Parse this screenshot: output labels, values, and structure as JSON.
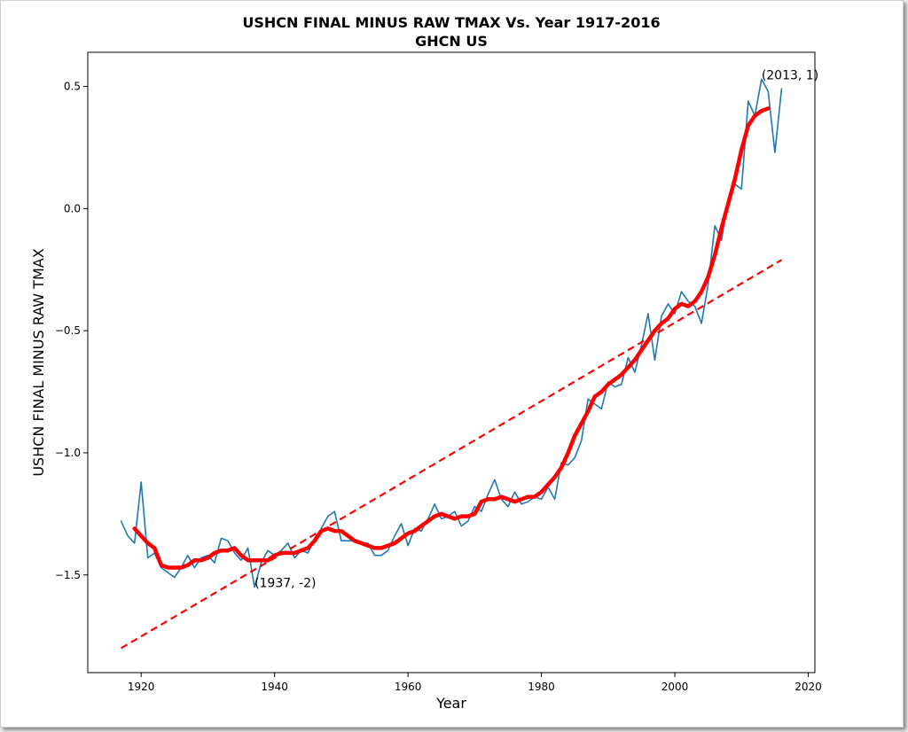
{
  "chart_data": {
    "type": "line",
    "title": "USHCN FINAL MINUS RAW TMAX Vs. Year 1917-2016",
    "subtitle": "GHCN US",
    "xlabel": "Year",
    "ylabel": "USHCN FINAL MINUS RAW TMAX",
    "xlim": [
      1912,
      2021
    ],
    "ylim": [
      -1.9,
      0.64
    ],
    "xticks": [
      1920,
      1940,
      1960,
      1980,
      2000,
      2020
    ],
    "xtick_labels": [
      "1920",
      "1940",
      "1960",
      "1980",
      "2000",
      "2020"
    ],
    "yticks": [
      -1.5,
      -1.0,
      -0.5,
      0.0,
      0.5
    ],
    "ytick_labels": [
      "−1.5",
      "−1.0",
      "−0.5",
      "0.0",
      "0.5"
    ],
    "grid": false,
    "series": [
      {
        "style": "thin-line",
        "color": "#1f77b4",
        "x": [
          1917,
          1918,
          1919,
          1920,
          1921,
          1922,
          1923,
          1924,
          1925,
          1926,
          1927,
          1928,
          1929,
          1930,
          1931,
          1932,
          1933,
          1934,
          1935,
          1936,
          1937,
          1938,
          1939,
          1940,
          1941,
          1942,
          1943,
          1944,
          1945,
          1946,
          1947,
          1948,
          1949,
          1950,
          1951,
          1952,
          1953,
          1954,
          1955,
          1956,
          1957,
          1958,
          1959,
          1960,
          1961,
          1962,
          1963,
          1964,
          1965,
          1966,
          1967,
          1968,
          1969,
          1970,
          1971,
          1972,
          1973,
          1974,
          1975,
          1976,
          1977,
          1978,
          1979,
          1980,
          1981,
          1982,
          1983,
          1984,
          1985,
          1986,
          1987,
          1988,
          1989,
          1990,
          1991,
          1992,
          1993,
          1994,
          1995,
          1996,
          1997,
          1998,
          1999,
          2000,
          2001,
          2002,
          2003,
          2004,
          2005,
          2006,
          2007,
          2008,
          2009,
          2010,
          2011,
          2012,
          2013,
          2014,
          2015,
          2016
        ],
        "values": [
          -1.28,
          -1.34,
          -1.37,
          -1.12,
          -1.43,
          -1.41,
          -1.47,
          -1.49,
          -1.51,
          -1.47,
          -1.42,
          -1.47,
          -1.43,
          -1.42,
          -1.45,
          -1.35,
          -1.36,
          -1.41,
          -1.44,
          -1.39,
          -1.55,
          -1.45,
          -1.4,
          -1.42,
          -1.4,
          -1.37,
          -1.43,
          -1.4,
          -1.41,
          -1.35,
          -1.31,
          -1.26,
          -1.24,
          -1.36,
          -1.36,
          -1.36,
          -1.37,
          -1.37,
          -1.42,
          -1.42,
          -1.4,
          -1.34,
          -1.29,
          -1.38,
          -1.31,
          -1.32,
          -1.27,
          -1.21,
          -1.27,
          -1.26,
          -1.24,
          -1.3,
          -1.28,
          -1.22,
          -1.24,
          -1.17,
          -1.11,
          -1.19,
          -1.22,
          -1.16,
          -1.21,
          -1.2,
          -1.18,
          -1.19,
          -1.14,
          -1.19,
          -1.04,
          -1.05,
          -1.02,
          -0.95,
          -0.78,
          -0.8,
          -0.82,
          -0.71,
          -0.73,
          -0.72,
          -0.61,
          -0.67,
          -0.56,
          -0.43,
          -0.62,
          -0.44,
          -0.39,
          -0.43,
          -0.34,
          -0.38,
          -0.4,
          -0.47,
          -0.31,
          -0.07,
          -0.13,
          0.04,
          0.1,
          0.08,
          0.44,
          0.38,
          0.53,
          0.48,
          0.23,
          0.49
        ]
      },
      {
        "style": "thick-line",
        "color": "#ff0000",
        "x": [
          1919,
          1920,
          1921,
          1922,
          1923,
          1924,
          1925,
          1926,
          1927,
          1928,
          1929,
          1930,
          1931,
          1932,
          1933,
          1934,
          1935,
          1936,
          1937,
          1938,
          1939,
          1940,
          1941,
          1942,
          1943,
          1944,
          1945,
          1946,
          1947,
          1948,
          1949,
          1950,
          1951,
          1952,
          1953,
          1954,
          1955,
          1956,
          1957,
          1958,
          1959,
          1960,
          1961,
          1962,
          1963,
          1964,
          1965,
          1966,
          1967,
          1968,
          1969,
          1970,
          1971,
          1972,
          1973,
          1974,
          1975,
          1976,
          1977,
          1978,
          1979,
          1980,
          1981,
          1982,
          1983,
          1984,
          1985,
          1986,
          1987,
          1988,
          1989,
          1990,
          1991,
          1992,
          1993,
          1994,
          1995,
          1996,
          1997,
          1998,
          1999,
          2000,
          2001,
          2002,
          2003,
          2004,
          2005,
          2006,
          2007,
          2008,
          2009,
          2010,
          2011,
          2012,
          2013,
          2014
        ],
        "values": [
          -1.31,
          -1.34,
          -1.37,
          -1.39,
          -1.46,
          -1.47,
          -1.47,
          -1.47,
          -1.46,
          -1.44,
          -1.44,
          -1.43,
          -1.41,
          -1.4,
          -1.4,
          -1.39,
          -1.42,
          -1.44,
          -1.44,
          -1.44,
          -1.44,
          -1.42,
          -1.41,
          -1.41,
          -1.41,
          -1.4,
          -1.39,
          -1.36,
          -1.32,
          -1.31,
          -1.32,
          -1.32,
          -1.34,
          -1.36,
          -1.37,
          -1.38,
          -1.39,
          -1.39,
          -1.38,
          -1.37,
          -1.35,
          -1.33,
          -1.32,
          -1.3,
          -1.28,
          -1.26,
          -1.25,
          -1.26,
          -1.27,
          -1.26,
          -1.26,
          -1.25,
          -1.2,
          -1.19,
          -1.19,
          -1.18,
          -1.19,
          -1.2,
          -1.19,
          -1.18,
          -1.18,
          -1.16,
          -1.13,
          -1.1,
          -1.06,
          -1.0,
          -0.93,
          -0.88,
          -0.83,
          -0.77,
          -0.75,
          -0.72,
          -0.7,
          -0.68,
          -0.65,
          -0.62,
          -0.58,
          -0.54,
          -0.5,
          -0.47,
          -0.45,
          -0.41,
          -0.39,
          -0.4,
          -0.38,
          -0.34,
          -0.28,
          -0.19,
          -0.08,
          0.02,
          0.12,
          0.24,
          0.34,
          0.38,
          0.4,
          0.41
        ]
      },
      {
        "style": "dashed",
        "color": "#ff0000",
        "x": [
          1917,
          2016
        ],
        "values": [
          -1.8,
          -0.21
        ]
      }
    ],
    "annotations": [
      {
        "text": "(2013, 1)",
        "x": 2013,
        "y": 0.53
      },
      {
        "text": "(1937, -2)",
        "x": 1937,
        "y": -1.55
      }
    ]
  }
}
